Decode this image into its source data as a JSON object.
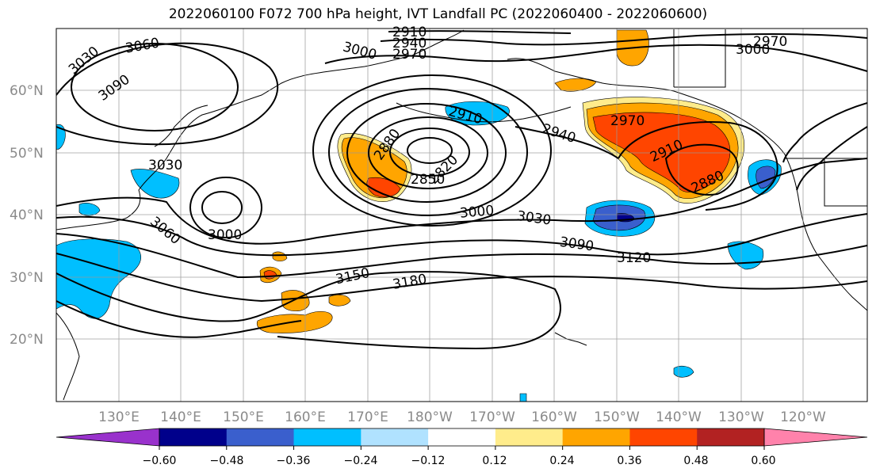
{
  "title": "2022060100 F072 700 hPa height, IVT Landfall PC (2022060400 - 2022060600)",
  "map": {
    "lon_labels": [
      "130°E",
      "140°E",
      "150°E",
      "160°E",
      "170°E",
      "180°W",
      "170°W",
      "160°W",
      "150°W",
      "140°W",
      "130°W",
      "120°W"
    ],
    "lat_labels": [
      "60°N",
      "50°N",
      "40°N",
      "30°N",
      "20°N"
    ],
    "contour_labels": [
      "3030",
      "3060",
      "3090",
      "2910",
      "2940",
      "2970",
      "3000",
      "2970",
      "3000",
      "2880",
      "2910",
      "2820",
      "2850",
      "2940",
      "2970",
      "2910",
      "2880",
      "3030",
      "3000",
      "3060",
      "3000",
      "3030",
      "3090",
      "3120",
      "3150",
      "3180"
    ],
    "contour_color": "#000000",
    "grid_color": "#999999"
  },
  "colorbar": {
    "ticks": [
      "−0.60",
      "−0.48",
      "−0.36",
      "−0.24",
      "−0.12",
      "0.12",
      "0.24",
      "0.36",
      "0.48",
      "0.60"
    ],
    "colors": [
      "#9932cc",
      "#00008b",
      "#3a5fcd",
      "#00bfff",
      "#b0e2ff",
      "#ffffff",
      "#ffec8b",
      "#ffa500",
      "#ff4500",
      "#b22222",
      "#ff82ab"
    ]
  }
}
